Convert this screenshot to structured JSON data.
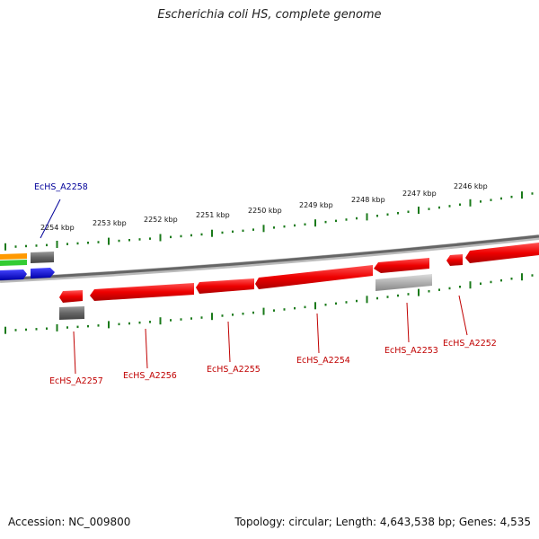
{
  "title": "Escherichia coli HS, complete genome",
  "footer": {
    "accession": "Accession: NC_009800",
    "summary": "Topology: circular; Length: 4,643,538 bp; Genes: 4,535"
  },
  "ruler_ticks": [
    "2254 kbp",
    "2253 kbp",
    "2252 kbp",
    "2251 kbp",
    "2250 kbp",
    "2249 kbp",
    "2248 kbp",
    "2247 kbp",
    "2246 kbp"
  ],
  "genes": {
    "A2258": "EcHS_A2258",
    "A2257": "EcHS_A2257",
    "A2256": "EcHS_A2256",
    "A2255": "EcHS_A2255",
    "A2254": "EcHS_A2254",
    "A2253": "EcHS_A2253",
    "A2252": "EcHS_A2252"
  },
  "colors": {
    "red_gene": "#ee0000",
    "gray_gene": "#666666",
    "light_gray_gene": "#aaaaaa",
    "backbone": "#777777",
    "tick_green": "#1a7a1a",
    "orange": "#ff9900",
    "green": "#33cc33",
    "blue": "#0000ee"
  }
}
